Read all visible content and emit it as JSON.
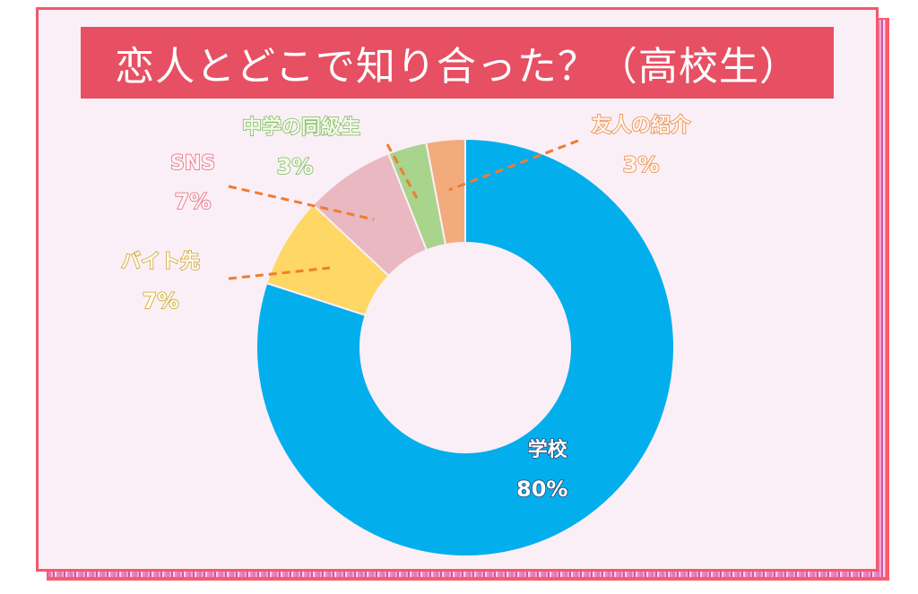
{
  "title": "恋人とどこで知り合った？（高校生）",
  "colors": {
    "title_bg": "#e74f63",
    "frame_border": "#f5576b",
    "frame_bg": "#fbeff7",
    "leader_line": "#ef7d2f"
  },
  "chart_data": {
    "type": "pie",
    "variant": "donut",
    "title": "恋人とどこで知り合った？（高校生）",
    "unit": "%",
    "start_angle": "12 o'clock",
    "direction": "clockwise",
    "categories": [
      "学校",
      "バイト先",
      "SNS",
      "中学の同級生",
      "友人の紹介"
    ],
    "values": [
      80,
      7,
      7,
      3,
      3
    ],
    "colors": [
      "#03aeed",
      "#fed764",
      "#e9b8c1",
      "#a8d48b",
      "#f2ab7c"
    ],
    "labels": [
      {
        "name": "学校",
        "value": "80%"
      },
      {
        "name": "バイト先",
        "value": "7%"
      },
      {
        "name": "SNS",
        "value": "7%"
      },
      {
        "name": "中学の同級生",
        "value": "3%"
      },
      {
        "name": "友人の紹介",
        "value": "3%"
      }
    ],
    "legend": "none (labels placed beside slices with dashed leader lines)"
  }
}
